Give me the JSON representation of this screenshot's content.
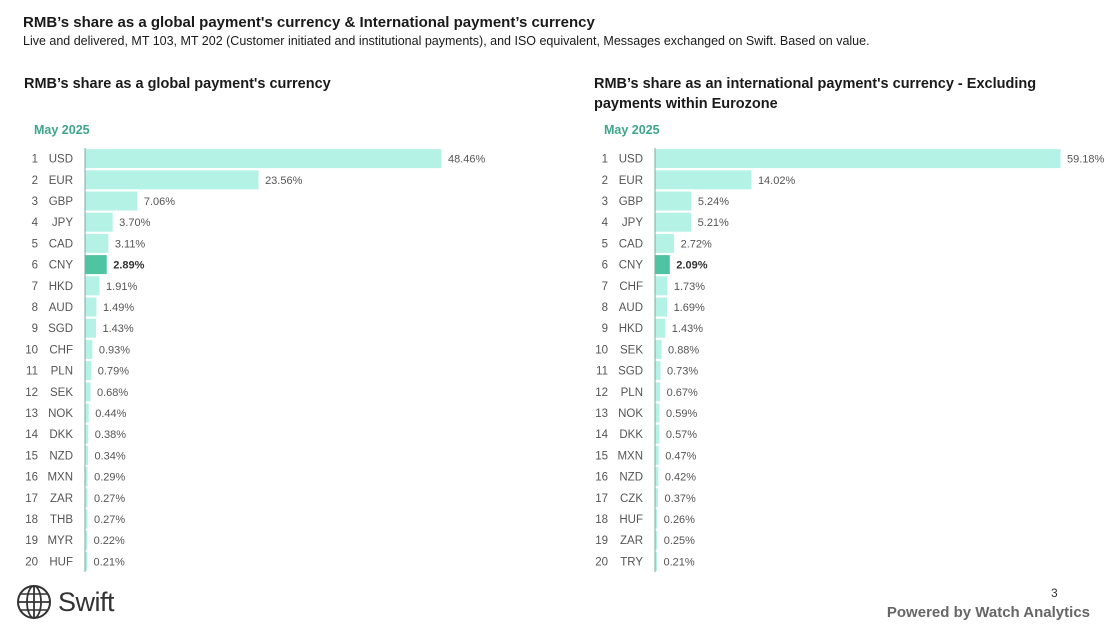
{
  "header": {
    "title": "RMB’s share as a global payment's currency & International payment’s currency",
    "subtitle": "Live and delivered, MT 103, MT 202 (Customer initiated and institutional payments), and ISO equivalent, Messages exchanged on Swift. Based on value."
  },
  "panels": {
    "left": {
      "title": "RMB’s share as a global payment's currency",
      "period": "May 2025"
    },
    "right": {
      "title": "RMB’s share as an international payment's currency - Excluding payments within Eurozone",
      "period": "May 2025"
    }
  },
  "colors": {
    "bar": "#b5f2e6",
    "highlight": "#4ec4a2",
    "axis": "#7fa8a0",
    "period": "#3fa58b"
  },
  "footer": {
    "logo_word": "Swift",
    "page_number": "3",
    "powered_by": "Powered by Watch Analytics"
  },
  "chart_data": [
    {
      "type": "bar",
      "orientation": "horizontal",
      "title": "RMB’s share as a global payment's currency",
      "subtitle": "May 2025",
      "highlight": "CNY",
      "ranks": [
        "1",
        "2",
        "3",
        "4",
        "5",
        "6",
        "7",
        "8",
        "9",
        "10",
        "11",
        "12",
        "13",
        "14",
        "15",
        "16",
        "17",
        "18",
        "19",
        "20"
      ],
      "categories": [
        "USD",
        "EUR",
        "GBP",
        "JPY",
        "CAD",
        "CNY",
        "HKD",
        "AUD",
        "SGD",
        "CHF",
        "PLN",
        "SEK",
        "NOK",
        "DKK",
        "NZD",
        "MXN",
        "ZAR",
        "THB",
        "MYR",
        "HUF"
      ],
      "values": [
        48.46,
        23.56,
        7.06,
        3.7,
        3.11,
        2.89,
        1.91,
        1.49,
        1.43,
        0.93,
        0.79,
        0.68,
        0.44,
        0.38,
        0.34,
        0.29,
        0.27,
        0.27,
        0.22,
        0.21
      ],
      "labels": [
        "48.46%",
        "23.56%",
        "7.06%",
        "3.70%",
        "3.11%",
        "2.89%",
        "1.91%",
        "1.49%",
        "1.43%",
        "0.93%",
        "0.79%",
        "0.68%",
        "0.44%",
        "0.38%",
        "0.34%",
        "0.29%",
        "0.27%",
        "0.27%",
        "0.22%",
        "0.21%"
      ]
    },
    {
      "type": "bar",
      "orientation": "horizontal",
      "title": "RMB’s share as an international payment's currency - Excluding payments within Eurozone",
      "subtitle": "May 2025",
      "highlight": "CNY",
      "ranks": [
        "1",
        "2",
        "3",
        "4",
        "5",
        "6",
        "7",
        "8",
        "9",
        "10",
        "11",
        "12",
        "13",
        "14",
        "15",
        "16",
        "17",
        "18",
        "19",
        "20"
      ],
      "categories": [
        "USD",
        "EUR",
        "GBP",
        "JPY",
        "CAD",
        "CNY",
        "CHF",
        "AUD",
        "HKD",
        "SEK",
        "SGD",
        "PLN",
        "NOK",
        "DKK",
        "MXN",
        "NZD",
        "CZK",
        "HUF",
        "ZAR",
        "TRY"
      ],
      "values": [
        59.18,
        14.02,
        5.24,
        5.21,
        2.72,
        2.09,
        1.73,
        1.69,
        1.43,
        0.88,
        0.73,
        0.67,
        0.59,
        0.57,
        0.47,
        0.42,
        0.37,
        0.26,
        0.25,
        0.21
      ],
      "labels": [
        "59.18%",
        "14.02%",
        "5.24%",
        "5.21%",
        "2.72%",
        "2.09%",
        "1.73%",
        "1.69%",
        "1.43%",
        "0.88%",
        "0.73%",
        "0.67%",
        "0.59%",
        "0.57%",
        "0.47%",
        "0.42%",
        "0.37%",
        "0.26%",
        "0.25%",
        "0.21%"
      ]
    }
  ]
}
